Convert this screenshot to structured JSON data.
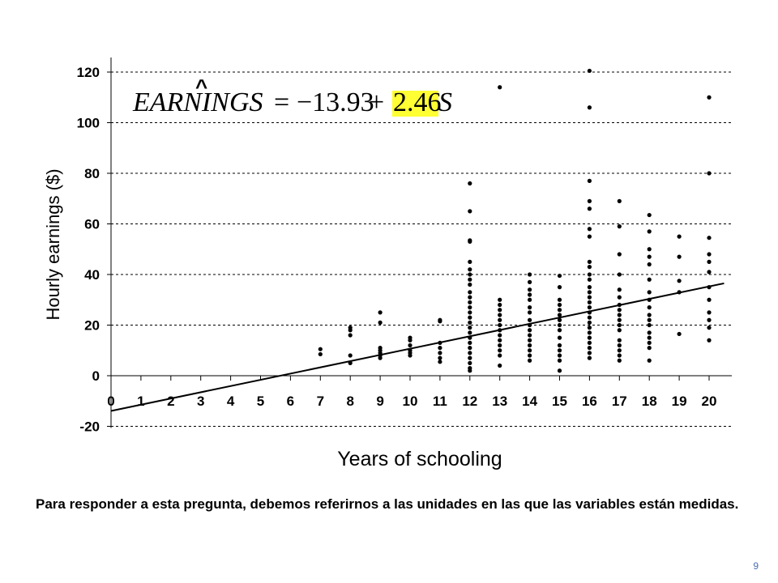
{
  "slide": {
    "caption": "Para responder a esta pregunta, debemos referirnos a las unidades en las que las variables están medidas.",
    "page_number": "9",
    "page_number_color": "#4a6fb3"
  },
  "equation": {
    "lhs": "EARNINGS",
    "hat": "^",
    "equals": "=",
    "intercept": "−13.93",
    "plus": "+",
    "slope": "2.46",
    "variable": "S",
    "highlight_color": "#ffff33"
  },
  "chart_data": {
    "type": "scatter",
    "xlabel": "Years of schooling",
    "ylabel": "Hourly earnings ($)",
    "xlim": [
      0,
      20
    ],
    "ylim": [
      -20,
      120
    ],
    "xticks": [
      "0",
      "1",
      "2",
      "3",
      "4",
      "5",
      "6",
      "7",
      "8",
      "9",
      "10",
      "11",
      "12",
      "13",
      "14",
      "15",
      "16",
      "17",
      "18",
      "19",
      "20"
    ],
    "yticks": [
      "-20",
      "0",
      "20",
      "40",
      "60",
      "80",
      "100",
      "120"
    ],
    "grid": "horizontal dashed",
    "regression_line": {
      "intercept": -13.93,
      "slope": 2.46
    },
    "points": [
      [
        7,
        10.5
      ],
      [
        7,
        8.5
      ],
      [
        8,
        19
      ],
      [
        8,
        18
      ],
      [
        8,
        16
      ],
      [
        8,
        8
      ],
      [
        8,
        5
      ],
      [
        9,
        25
      ],
      [
        9,
        21
      ],
      [
        9,
        11
      ],
      [
        9,
        10
      ],
      [
        9,
        9
      ],
      [
        9,
        8
      ],
      [
        9,
        7
      ],
      [
        10,
        15
      ],
      [
        10,
        14
      ],
      [
        10,
        12
      ],
      [
        10,
        10
      ],
      [
        10,
        9
      ],
      [
        10,
        8
      ],
      [
        11,
        22
      ],
      [
        11,
        21.5
      ],
      [
        11,
        13
      ],
      [
        11,
        11
      ],
      [
        11,
        9
      ],
      [
        11,
        7
      ],
      [
        11,
        5.5
      ],
      [
        12,
        76
      ],
      [
        12,
        65
      ],
      [
        12,
        53.5
      ],
      [
        12,
        53
      ],
      [
        12,
        45
      ],
      [
        12,
        42
      ],
      [
        12,
        40
      ],
      [
        12,
        38
      ],
      [
        12,
        36
      ],
      [
        12,
        33
      ],
      [
        12,
        31
      ],
      [
        12,
        29
      ],
      [
        12,
        27
      ],
      [
        12,
        25
      ],
      [
        12,
        23
      ],
      [
        12,
        21
      ],
      [
        12,
        19
      ],
      [
        12,
        17
      ],
      [
        12,
        15
      ],
      [
        12,
        13
      ],
      [
        12,
        11
      ],
      [
        12,
        9
      ],
      [
        12,
        7
      ],
      [
        12,
        5
      ],
      [
        12,
        3
      ],
      [
        12,
        2
      ],
      [
        13,
        114
      ],
      [
        13,
        30
      ],
      [
        13,
        28
      ],
      [
        13,
        26
      ],
      [
        13,
        24
      ],
      [
        13,
        22
      ],
      [
        13,
        20
      ],
      [
        13,
        18
      ],
      [
        13,
        16
      ],
      [
        13,
        14
      ],
      [
        13,
        12
      ],
      [
        13,
        10
      ],
      [
        13,
        8
      ],
      [
        13,
        4
      ],
      [
        14,
        40
      ],
      [
        14,
        37
      ],
      [
        14,
        34
      ],
      [
        14,
        32
      ],
      [
        14,
        30
      ],
      [
        14,
        27
      ],
      [
        14,
        25
      ],
      [
        14,
        22
      ],
      [
        14,
        20
      ],
      [
        14,
        18
      ],
      [
        14,
        16
      ],
      [
        14,
        14
      ],
      [
        14,
        12
      ],
      [
        14,
        10
      ],
      [
        14,
        8
      ],
      [
        14,
        6
      ],
      [
        15,
        39.5
      ],
      [
        15,
        35
      ],
      [
        15,
        30
      ],
      [
        15,
        28
      ],
      [
        15,
        26
      ],
      [
        15,
        24
      ],
      [
        15,
        22
      ],
      [
        15,
        20
      ],
      [
        15,
        18
      ],
      [
        15,
        15
      ],
      [
        15,
        12
      ],
      [
        15,
        10
      ],
      [
        15,
        8
      ],
      [
        15,
        6
      ],
      [
        15,
        2
      ],
      [
        16,
        120.5
      ],
      [
        16,
        106
      ],
      [
        16,
        77
      ],
      [
        16,
        69
      ],
      [
        16,
        66
      ],
      [
        16,
        58
      ],
      [
        16,
        55
      ],
      [
        16,
        45
      ],
      [
        16,
        43
      ],
      [
        16,
        40
      ],
      [
        16,
        38
      ],
      [
        16,
        35
      ],
      [
        16,
        33
      ],
      [
        16,
        31
      ],
      [
        16,
        29
      ],
      [
        16,
        27
      ],
      [
        16,
        25
      ],
      [
        16,
        23
      ],
      [
        16,
        21
      ],
      [
        16,
        19
      ],
      [
        16,
        17
      ],
      [
        16,
        15
      ],
      [
        16,
        13
      ],
      [
        16,
        11
      ],
      [
        16,
        9
      ],
      [
        16,
        7
      ],
      [
        17,
        69
      ],
      [
        17,
        59
      ],
      [
        17,
        48
      ],
      [
        17,
        40
      ],
      [
        17,
        34
      ],
      [
        17,
        31
      ],
      [
        17,
        28
      ],
      [
        17,
        26
      ],
      [
        17,
        24
      ],
      [
        17,
        22
      ],
      [
        17,
        20
      ],
      [
        17,
        18
      ],
      [
        17,
        14
      ],
      [
        17,
        12
      ],
      [
        17,
        10
      ],
      [
        17,
        8
      ],
      [
        17,
        6
      ],
      [
        18,
        63.5
      ],
      [
        18,
        57
      ],
      [
        18,
        50
      ],
      [
        18,
        47
      ],
      [
        18,
        44
      ],
      [
        18,
        38
      ],
      [
        18,
        33
      ],
      [
        18,
        30
      ],
      [
        18,
        27
      ],
      [
        18,
        24
      ],
      [
        18,
        22
      ],
      [
        18,
        20
      ],
      [
        18,
        17
      ],
      [
        18,
        15
      ],
      [
        18,
        13
      ],
      [
        18,
        11
      ],
      [
        18,
        6
      ],
      [
        19,
        55
      ],
      [
        19,
        47
      ],
      [
        19,
        37.5
      ],
      [
        19,
        33
      ],
      [
        19,
        16.5
      ],
      [
        20,
        110
      ],
      [
        20,
        80
      ],
      [
        20,
        54.5
      ],
      [
        20,
        48
      ],
      [
        20,
        45
      ],
      [
        20,
        41
      ],
      [
        20,
        35
      ],
      [
        20,
        30
      ],
      [
        20,
        25
      ],
      [
        20,
        22
      ],
      [
        20,
        19
      ],
      [
        20,
        14
      ]
    ]
  }
}
